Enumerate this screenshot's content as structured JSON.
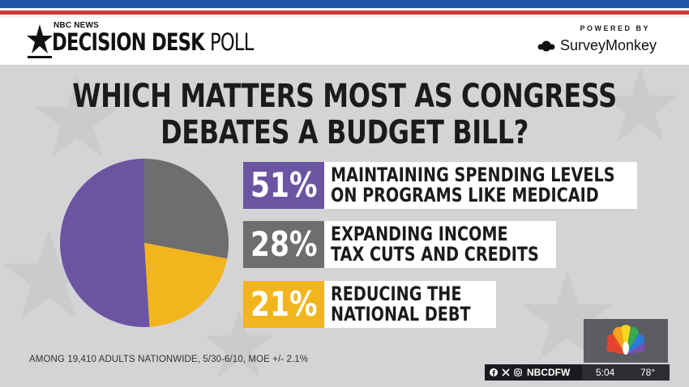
{
  "header": {
    "network": "NBC NEWS",
    "brand": "DECISION DESK",
    "poll": "POLL",
    "powered_by": "POWERED BY",
    "sponsor": "SurveyMonkey"
  },
  "headline": {
    "line1": "WHICH MATTERS MOST AS CONGRESS",
    "line2": "DEBATES A BUDGET BILL?"
  },
  "footnote": "AMONG 19,410 ADULTS NATIONWIDE, 5/30-6/10, MOE +/- 2.1%",
  "ticker": {
    "handle": "NBCDFW",
    "time": "5:04",
    "temp": "78°"
  },
  "icons": [
    "nbc-star-logo",
    "surveymonkey-logo",
    "nbc-peacock-logo",
    "facebook-icon",
    "x-icon",
    "instagram-icon"
  ],
  "colors": {
    "purple": "#6b55a3",
    "gray": "#6e6e70",
    "yellow": "#f2b51e"
  },
  "chart_data": {
    "type": "pie",
    "title": "WHICH MATTERS MOST AS CONGRESS DEBATES A BUDGET BILL?",
    "slices": [
      {
        "label_line1": "MAINTAINING SPENDING LEVELS",
        "label_line2": "ON PROGRAMS LIKE MEDICAID",
        "value": 51,
        "display": "51%",
        "color": "#6b55a3"
      },
      {
        "label_line1": "EXPANDING INCOME",
        "label_line2": "TAX CUTS AND CREDITS",
        "value": 28,
        "display": "28%",
        "color": "#6e6e70"
      },
      {
        "label_line1": "REDUCING THE",
        "label_line2": "NATIONAL DEBT",
        "value": 21,
        "display": "21%",
        "color": "#f2b51e"
      }
    ],
    "legend": "right"
  }
}
